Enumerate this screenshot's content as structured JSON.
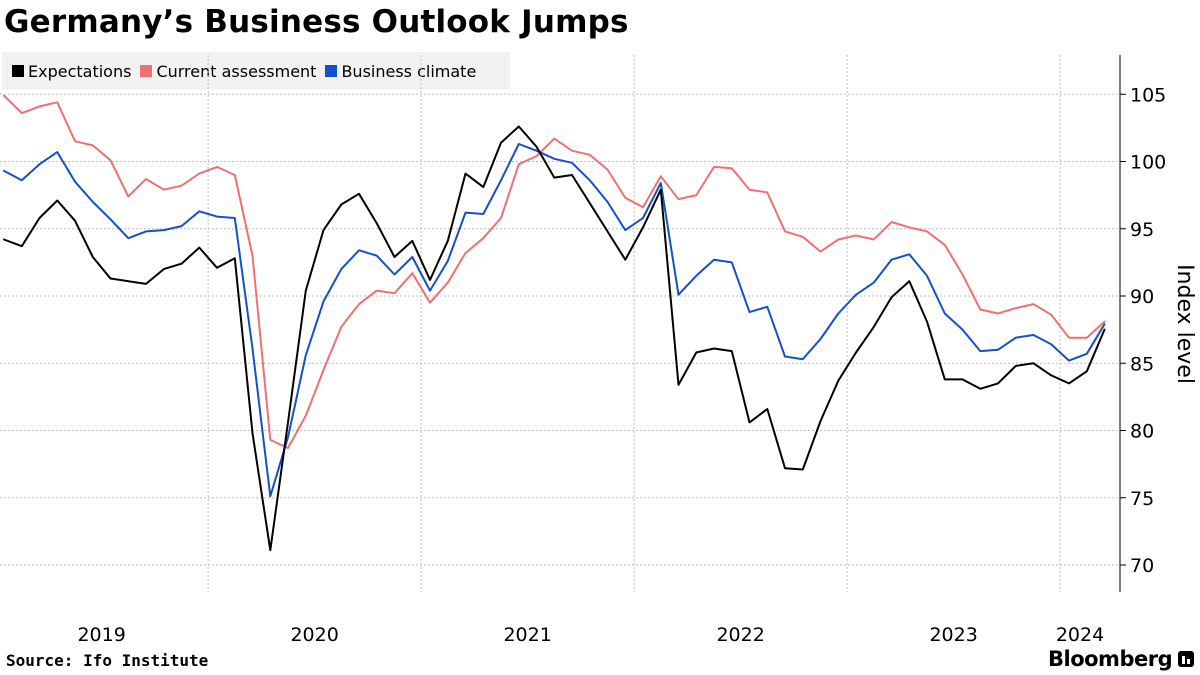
{
  "title": "Germany’s Business Outlook Jumps",
  "source": "Source: Ifo Institute",
  "brand": "Bloomberg",
  "colors": {
    "expectations": "#000000",
    "current": "#f07070",
    "climate": "#1450c8",
    "grid": "#bdbdbd",
    "legend_bg": "#f2f2f2"
  },
  "chart_data": {
    "type": "line",
    "title": "Germany’s Business Outlook Jumps",
    "xlabel": "",
    "ylabel": "Index level",
    "ylim": [
      68,
      108
    ],
    "y_ticks": [
      70,
      75,
      80,
      85,
      90,
      95,
      100,
      105
    ],
    "x_start": "2019-01",
    "x_end": "2024-04",
    "x_year_labels": [
      "2019",
      "2020",
      "2021",
      "2022",
      "2023",
      "2024"
    ],
    "grid": true,
    "legend": "top-left",
    "series": [
      {
        "name": "Expectations",
        "color": "#000000",
        "values": [
          94.2,
          93.7,
          95.8,
          97.1,
          95.6,
          92.9,
          91.3,
          91.1,
          90.9,
          92.0,
          92.4,
          93.6,
          92.1,
          92.8,
          79.8,
          71.1,
          80.6,
          90.4,
          94.9,
          96.8,
          97.6,
          95.4,
          92.9,
          94.1,
          91.2,
          94.1,
          99.1,
          98.1,
          101.4,
          102.6,
          101.1,
          98.8,
          99.0,
          96.9,
          94.8,
          92.7,
          95.1,
          97.9,
          83.4,
          85.8,
          86.1,
          85.9,
          80.6,
          81.6,
          77.2,
          77.1,
          80.7,
          83.7,
          85.8,
          87.7,
          89.9,
          91.1,
          88.1,
          83.8,
          83.8,
          83.1,
          83.5,
          84.8,
          85.0,
          84.1,
          83.5,
          84.4,
          87.5
        ]
      },
      {
        "name": "Current assessment",
        "color": "#f07070",
        "values": [
          104.9,
          103.6,
          104.1,
          104.4,
          101.5,
          101.2,
          100.1,
          97.4,
          98.7,
          97.9,
          98.2,
          99.1,
          99.6,
          99.0,
          93.0,
          79.3,
          78.7,
          81.1,
          84.5,
          87.7,
          89.4,
          90.4,
          90.2,
          91.7,
          89.5,
          91.0,
          93.2,
          94.3,
          95.8,
          99.8,
          100.4,
          101.7,
          100.8,
          100.5,
          99.4,
          97.3,
          96.6,
          98.9,
          97.2,
          97.5,
          99.6,
          99.5,
          97.9,
          97.7,
          94.8,
          94.4,
          93.3,
          94.2,
          94.5,
          94.2,
          95.5,
          95.1,
          94.8,
          93.8,
          91.6,
          89.0,
          88.7,
          89.1,
          89.4,
          88.6,
          86.9,
          86.9,
          88.1
        ]
      },
      {
        "name": "Business climate",
        "color": "#1450c8",
        "values": [
          99.3,
          98.6,
          99.8,
          100.7,
          98.5,
          97.0,
          95.7,
          94.3,
          94.8,
          94.9,
          95.2,
          96.3,
          95.9,
          95.8,
          86.1,
          75.1,
          79.5,
          85.6,
          89.6,
          92.0,
          93.4,
          93.0,
          91.6,
          92.9,
          90.4,
          92.6,
          96.2,
          96.1,
          98.6,
          101.3,
          100.8,
          100.2,
          99.9,
          98.6,
          97.0,
          94.9,
          95.8,
          98.4,
          90.1,
          91.5,
          92.7,
          92.5,
          88.8,
          89.2,
          85.5,
          85.3,
          86.8,
          88.7,
          90.1,
          91.0,
          92.7,
          93.1,
          91.5,
          88.7,
          87.5,
          85.9,
          86.0,
          86.9,
          87.1,
          86.4,
          85.2,
          85.7,
          87.9
        ]
      }
    ]
  }
}
